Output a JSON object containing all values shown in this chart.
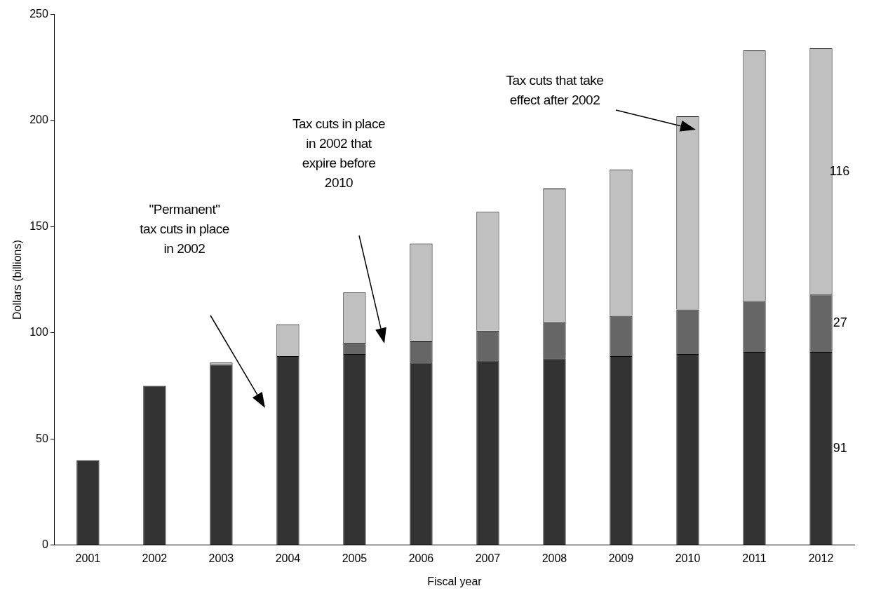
{
  "chart_data": {
    "type": "bar",
    "stacked": true,
    "xlabel": "Fiscal year",
    "ylabel": "Dollars (billions)",
    "categories": [
      "2001",
      "2002",
      "2003",
      "2004",
      "2005",
      "2006",
      "2007",
      "2008",
      "2009",
      "2010",
      "2011",
      "2012"
    ],
    "series": [
      {
        "color": "#333333",
        "values": [
          40,
          75,
          85,
          89,
          90,
          86,
          87,
          88,
          89,
          90,
          91,
          91
        ],
        "value_labels": [
          null,
          null,
          null,
          null,
          null,
          null,
          null,
          null,
          null,
          null,
          null,
          "91"
        ]
      },
      {
        "color": "#666666",
        "values": [
          null,
          null,
          null,
          null,
          5,
          10,
          14,
          17,
          19,
          21,
          24,
          27
        ],
        "value_labels": [
          null,
          null,
          null,
          null,
          null,
          null,
          null,
          null,
          null,
          null,
          null,
          "27"
        ]
      },
      {
        "color": "#c0c0c0",
        "values": [
          null,
          null,
          1,
          15,
          24,
          46,
          56,
          63,
          69,
          91,
          118,
          116
        ],
        "value_labels": [
          null,
          null,
          null,
          null,
          null,
          null,
          null,
          null,
          null,
          null,
          null,
          "116"
        ]
      }
    ],
    "ylim": [
      0,
      250
    ],
    "yticks": [
      0,
      50,
      100,
      150,
      200,
      250
    ],
    "grid": false,
    "legend": false,
    "annotations": [
      "\"Permanent\"\ntax cuts in place\nin 2002",
      "Tax cuts in place\nin 2002 that\nexpire before\n2010",
      "Tax cuts that take\neffect after 2002"
    ]
  }
}
